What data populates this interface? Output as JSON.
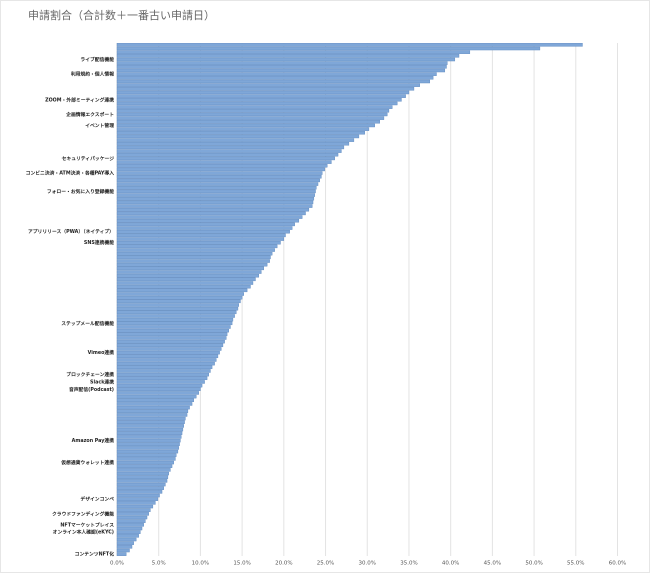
{
  "chart_data": {
    "type": "hbar",
    "title": "申請割合（合計数＋一番古い申請日）",
    "color": "#7fa7d8",
    "grid": true,
    "xlim": [
      0,
      61.5
    ],
    "xticks": [
      {
        "value": 0,
        "label": "0.0%"
      },
      {
        "value": 5,
        "label": "5.0%"
      },
      {
        "value": 10,
        "label": "10.0%"
      },
      {
        "value": 15,
        "label": "15.0%"
      },
      {
        "value": 20,
        "label": "20.0%"
      },
      {
        "value": 25,
        "label": "25.0%"
      },
      {
        "value": 30,
        "label": "30.0%"
      },
      {
        "value": 35,
        "label": "35.0%"
      },
      {
        "value": 40,
        "label": "40.0%"
      },
      {
        "value": 45,
        "label": "45.0%"
      },
      {
        "value": 50,
        "label": "50.0%"
      },
      {
        "value": 55,
        "label": "55.0%"
      },
      {
        "value": 60,
        "label": "60.0%"
      }
    ],
    "categories": [
      null,
      null,
      null,
      null,
      "ライブ配信機能",
      null,
      null,
      null,
      "利用規約・個人情報",
      null,
      null,
      null,
      null,
      null,
      null,
      "ZOOM・外部ミーティング連携",
      null,
      null,
      null,
      "企画情報エクスポート",
      null,
      null,
      "イベント管理",
      null,
      null,
      null,
      null,
      null,
      null,
      null,
      null,
      "セキュリティパッケージ",
      null,
      null,
      null,
      "コンビニ決済・ATM決済・各種PAY導入",
      null,
      null,
      null,
      null,
      "フォロー・お気に入り登録機能",
      null,
      null,
      null,
      null,
      null,
      null,
      null,
      null,
      null,
      null,
      "アプリリリース（PWA）（ネイティブ）",
      null,
      null,
      "SNS連携機能",
      null,
      null,
      null,
      null,
      null,
      null,
      null,
      null,
      null,
      null,
      null,
      null,
      null,
      null,
      null,
      null,
      null,
      null,
      null,
      null,
      null,
      "ステップメール配信機能",
      null,
      null,
      null,
      null,
      null,
      null,
      null,
      "Vimeo連携",
      null,
      null,
      null,
      null,
      null,
      "ブロックチェーン連携",
      null,
      "Slack連携",
      null,
      "音声配信(Podcast)",
      null,
      null,
      null,
      null,
      null,
      null,
      null,
      null,
      null,
      null,
      null,
      null,
      null,
      "Amazon Pay連携",
      null,
      null,
      null,
      null,
      null,
      "仮想通貨ウォレット連携",
      null,
      null,
      null,
      null,
      null,
      null,
      null,
      null,
      null,
      "デザインコンペ",
      null,
      null,
      null,
      "クラウドファンディング機能",
      null,
      null,
      "NFTマーケットプレイス",
      null,
      "オンライン本人確認(eKYC)",
      null,
      null,
      null,
      null,
      null,
      "コンテンツNFT化"
    ],
    "values": [
      55.8,
      50.7,
      42.3,
      41.0,
      40.5,
      39.6,
      39.5,
      39.3,
      38.3,
      37.9,
      37.5,
      36.3,
      35.6,
      35.0,
      34.6,
      34.1,
      33.6,
      33.0,
      32.6,
      32.4,
      32.0,
      31.5,
      30.9,
      30.2,
      29.7,
      29.0,
      28.4,
      27.8,
      27.2,
      26.9,
      26.5,
      26.1,
      25.7,
      25.2,
      24.9,
      24.6,
      24.5,
      24.3,
      24.1,
      23.9,
      23.8,
      23.7,
      23.6,
      23.5,
      23.4,
      23.0,
      22.6,
      22.2,
      21.8,
      21.3,
      21.0,
      20.7,
      20.2,
      20.0,
      19.6,
      19.2,
      18.9,
      18.6,
      18.4,
      18.3,
      18.0,
      17.6,
      17.3,
      17.0,
      16.6,
      16.3,
      16.0,
      15.6,
      15.2,
      15.0,
      14.8,
      14.6,
      14.5,
      14.3,
      14.1,
      13.9,
      13.8,
      13.6,
      13.4,
      13.2,
      13.1,
      12.9,
      12.7,
      12.5,
      12.3,
      12.1,
      11.9,
      11.7,
      11.4,
      11.2,
      11.0,
      10.8,
      10.5,
      10.2,
      10.0,
      9.8,
      9.5,
      9.2,
      9.0,
      8.7,
      8.5,
      8.4,
      8.2,
      8.1,
      8.0,
      7.9,
      7.8,
      7.7,
      7.6,
      7.5,
      7.4,
      7.3,
      7.1,
      7.0,
      6.8,
      6.6,
      6.4,
      6.2,
      6.1,
      6.0,
      5.8,
      5.6,
      5.4,
      5.1,
      4.9,
      4.6,
      4.3,
      4.0,
      3.8,
      3.6,
      3.4,
      3.2,
      3.0,
      2.8,
      2.6,
      2.3,
      2.0,
      1.8,
      1.5,
      1.1
    ]
  }
}
